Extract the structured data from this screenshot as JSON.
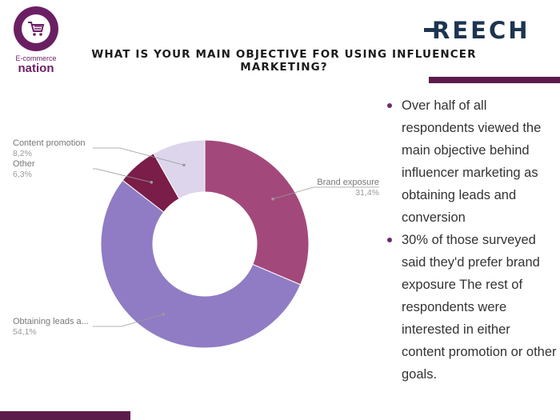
{
  "header": {
    "title": "WHAT IS YOUR MAIN OBJECTIVE FOR USING INFLUENCER MARKETING?",
    "left_logo": {
      "line1": "E-commerce",
      "line2": "nation",
      "icon": "shopping-cart-icon"
    },
    "right_logo": {
      "text": "REECH"
    }
  },
  "colors": {
    "accent": "#5c1c4b",
    "brand_exposure": "#a3487b",
    "obtaining_leads": "#8f7cc4",
    "other": "#7a1d48",
    "content_promotion": "#ddd5ec"
  },
  "chart_data": {
    "type": "pie",
    "donut": true,
    "slices": [
      {
        "label": "Brand exposure",
        "value_label": "31,4%",
        "value": 31.4,
        "color": "#a3487b"
      },
      {
        "label": "Obtaining leads a...",
        "value_label": "54,1%",
        "value": 54.1,
        "color": "#8f7cc4"
      },
      {
        "label": "Other",
        "value_label": "6,3%",
        "value": 6.3,
        "color": "#7a1d48"
      },
      {
        "label": "Content promotion",
        "value_label": "8,2%",
        "value": 8.2,
        "color": "#ddd5ec"
      }
    ],
    "legend": "none"
  },
  "bullets": [
    "Over half of all respondents viewed the main objective behind influencer marketing as obtaining leads and conversion",
    "30% of those surveyed said they'd prefer brand exposure The rest of respondents were interested in either content promotion or other goals."
  ]
}
